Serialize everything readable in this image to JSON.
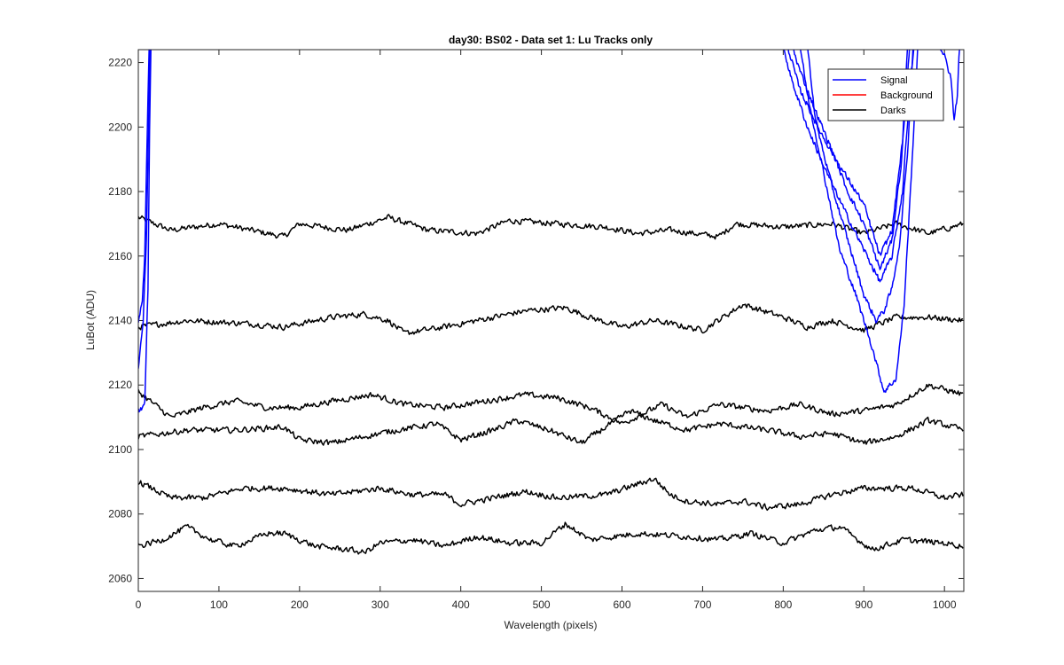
{
  "chart_data": {
    "type": "line",
    "title": "day30: BS02 - Data set 1: Lu Tracks only",
    "xlabel": "Wavelength (pixels)",
    "ylabel": "LuBot (ADU)",
    "xlim": [
      0,
      1024
    ],
    "ylim": [
      2056,
      2224
    ],
    "xticks": [
      0,
      100,
      200,
      300,
      400,
      500,
      600,
      700,
      800,
      900,
      1000
    ],
    "yticks": [
      2060,
      2080,
      2100,
      2120,
      2140,
      2160,
      2180,
      2200,
      2220
    ],
    "legend": {
      "placement": "top-right",
      "entries": [
        {
          "label": "Signal",
          "color": "#0000ff"
        },
        {
          "label": "Background",
          "color": "#ff0000"
        },
        {
          "label": "Darks",
          "color": "#000000"
        }
      ]
    },
    "noise_amplitude": 1.2,
    "dark_series": [
      {
        "name": "Darks 1",
        "color": "#000000",
        "points": [
          [
            0,
            2172
          ],
          [
            40,
            2168
          ],
          [
            100,
            2170
          ],
          [
            180,
            2166
          ],
          [
            200,
            2170
          ],
          [
            260,
            2168
          ],
          [
            310,
            2172
          ],
          [
            360,
            2168
          ],
          [
            420,
            2167
          ],
          [
            460,
            2171
          ],
          [
            520,
            2170
          ],
          [
            580,
            2169
          ],
          [
            620,
            2167
          ],
          [
            660,
            2168
          ],
          [
            720,
            2166
          ],
          [
            740,
            2170
          ],
          [
            800,
            2169
          ],
          [
            860,
            2170
          ],
          [
            900,
            2167
          ],
          [
            940,
            2170
          ],
          [
            980,
            2167
          ],
          [
            1024,
            2170
          ]
        ]
      },
      {
        "name": "Darks 2",
        "color": "#000000",
        "points": [
          [
            0,
            2138
          ],
          [
            60,
            2140
          ],
          [
            140,
            2139
          ],
          [
            180,
            2138
          ],
          [
            240,
            2141
          ],
          [
            280,
            2142
          ],
          [
            310,
            2140
          ],
          [
            330,
            2136
          ],
          [
            380,
            2138
          ],
          [
            420,
            2140
          ],
          [
            480,
            2143
          ],
          [
            530,
            2144
          ],
          [
            560,
            2141
          ],
          [
            600,
            2138
          ],
          [
            640,
            2140
          ],
          [
            700,
            2137
          ],
          [
            750,
            2145
          ],
          [
            800,
            2141
          ],
          [
            830,
            2138
          ],
          [
            860,
            2140
          ],
          [
            900,
            2137
          ],
          [
            940,
            2141
          ],
          [
            980,
            2141
          ],
          [
            1024,
            2140
          ]
        ]
      },
      {
        "name": "Darks 3",
        "color": "#000000",
        "points": [
          [
            0,
            2118
          ],
          [
            20,
            2114
          ],
          [
            40,
            2110
          ],
          [
            80,
            2113
          ],
          [
            120,
            2115
          ],
          [
            160,
            2113
          ],
          [
            200,
            2113
          ],
          [
            240,
            2115
          ],
          [
            290,
            2117
          ],
          [
            330,
            2114
          ],
          [
            380,
            2113
          ],
          [
            430,
            2115
          ],
          [
            480,
            2117
          ],
          [
            520,
            2116
          ],
          [
            560,
            2113
          ],
          [
            600,
            2108
          ],
          [
            650,
            2114
          ],
          [
            680,
            2110
          ],
          [
            720,
            2114
          ],
          [
            780,
            2112
          ],
          [
            820,
            2114
          ],
          [
            860,
            2111
          ],
          [
            900,
            2112
          ],
          [
            940,
            2114
          ],
          [
            980,
            2120
          ],
          [
            1024,
            2117
          ]
        ]
      },
      {
        "name": "Darks 4",
        "color": "#000000",
        "points": [
          [
            0,
            2104
          ],
          [
            60,
            2106
          ],
          [
            120,
            2106
          ],
          [
            180,
            2107
          ],
          [
            200,
            2103
          ],
          [
            240,
            2102
          ],
          [
            280,
            2104
          ],
          [
            320,
            2106
          ],
          [
            370,
            2108
          ],
          [
            400,
            2103
          ],
          [
            440,
            2106
          ],
          [
            470,
            2109
          ],
          [
            510,
            2106
          ],
          [
            550,
            2102
          ],
          [
            610,
            2112
          ],
          [
            640,
            2109
          ],
          [
            680,
            2106
          ],
          [
            720,
            2108
          ],
          [
            780,
            2106
          ],
          [
            820,
            2104
          ],
          [
            860,
            2105
          ],
          [
            900,
            2102
          ],
          [
            940,
            2104
          ],
          [
            980,
            2109
          ],
          [
            1024,
            2106
          ]
        ]
      },
      {
        "name": "Darks 5",
        "color": "#000000",
        "points": [
          [
            0,
            2090
          ],
          [
            40,
            2085
          ],
          [
            80,
            2085
          ],
          [
            130,
            2088
          ],
          [
            180,
            2088
          ],
          [
            240,
            2086
          ],
          [
            300,
            2088
          ],
          [
            340,
            2086
          ],
          [
            380,
            2086
          ],
          [
            400,
            2083
          ],
          [
            440,
            2085
          ],
          [
            480,
            2087
          ],
          [
            520,
            2085
          ],
          [
            580,
            2086
          ],
          [
            640,
            2091
          ],
          [
            660,
            2086
          ],
          [
            680,
            2084
          ],
          [
            720,
            2083
          ],
          [
            750,
            2084
          ],
          [
            780,
            2082
          ],
          [
            820,
            2083
          ],
          [
            860,
            2086
          ],
          [
            900,
            2088
          ],
          [
            960,
            2088
          ],
          [
            1000,
            2085
          ],
          [
            1024,
            2086
          ]
        ]
      },
      {
        "name": "Darks 6",
        "color": "#000000",
        "points": [
          [
            0,
            2070
          ],
          [
            30,
            2072
          ],
          [
            60,
            2076
          ],
          [
            90,
            2072
          ],
          [
            120,
            2070
          ],
          [
            160,
            2074
          ],
          [
            180,
            2074
          ],
          [
            220,
            2070
          ],
          [
            260,
            2069
          ],
          [
            280,
            2068
          ],
          [
            300,
            2071
          ],
          [
            340,
            2072
          ],
          [
            380,
            2070
          ],
          [
            420,
            2073
          ],
          [
            460,
            2071
          ],
          [
            500,
            2071
          ],
          [
            530,
            2077
          ],
          [
            560,
            2072
          ],
          [
            620,
            2074
          ],
          [
            680,
            2073
          ],
          [
            720,
            2072
          ],
          [
            760,
            2074
          ],
          [
            800,
            2071
          ],
          [
            840,
            2075
          ],
          [
            870,
            2076
          ],
          [
            910,
            2069
          ],
          [
            950,
            2072
          ],
          [
            1000,
            2071
          ],
          [
            1024,
            2070
          ]
        ]
      }
    ],
    "signal_series": [
      {
        "name": "Signal 1",
        "color": "#0000ff",
        "points": [
          [
            0,
            2112
          ],
          [
            8,
            2114
          ],
          [
            12,
            2150
          ],
          [
            14,
            2200
          ],
          [
            16,
            2230
          ]
        ]
      },
      {
        "name": "Signal 2",
        "color": "#0000ff",
        "points": [
          [
            0,
            2125
          ],
          [
            6,
            2140
          ],
          [
            10,
            2165
          ],
          [
            13,
            2205
          ],
          [
            15,
            2230
          ]
        ]
      },
      {
        "name": "Signal 3",
        "color": "#0000ff",
        "points": [
          [
            0,
            2140
          ],
          [
            5,
            2146
          ],
          [
            8,
            2160
          ],
          [
            12,
            2210
          ],
          [
            14,
            2230
          ]
        ]
      },
      {
        "name": "Signal 4",
        "color": "#0000ff",
        "points": [
          [
            828,
            2230
          ],
          [
            840,
            2202
          ],
          [
            860,
            2182
          ],
          [
            880,
            2165
          ],
          [
            900,
            2148
          ],
          [
            915,
            2140
          ],
          [
            925,
            2143
          ],
          [
            935,
            2150
          ],
          [
            945,
            2165
          ],
          [
            955,
            2195
          ],
          [
            962,
            2230
          ]
        ]
      },
      {
        "name": "Signal 5",
        "color": "#0000ff",
        "points": [
          [
            818,
            2230
          ],
          [
            830,
            2210
          ],
          [
            850,
            2186
          ],
          [
            870,
            2162
          ],
          [
            890,
            2148
          ],
          [
            910,
            2132
          ],
          [
            925,
            2118
          ],
          [
            940,
            2122
          ],
          [
            950,
            2145
          ],
          [
            960,
            2190
          ],
          [
            968,
            2230
          ]
        ]
      },
      {
        "name": "Signal 6",
        "color": "#0000ff",
        "points": [
          [
            795,
            2230
          ],
          [
            810,
            2215
          ],
          [
            830,
            2200
          ],
          [
            850,
            2188
          ],
          [
            880,
            2172
          ],
          [
            900,
            2162
          ],
          [
            920,
            2152
          ],
          [
            935,
            2160
          ],
          [
            948,
            2180
          ],
          [
            958,
            2215
          ],
          [
            965,
            2230
          ]
        ]
      },
      {
        "name": "Signal 7",
        "color": "#0000ff",
        "points": [
          [
            805,
            2230
          ],
          [
            820,
            2218
          ],
          [
            840,
            2205
          ],
          [
            860,
            2193
          ],
          [
            880,
            2180
          ],
          [
            900,
            2170
          ],
          [
            920,
            2156
          ],
          [
            935,
            2165
          ],
          [
            947,
            2190
          ],
          [
            955,
            2230
          ]
        ]
      },
      {
        "name": "Signal 8",
        "color": "#0000ff",
        "points": [
          [
            800,
            2230
          ],
          [
            820,
            2212
          ],
          [
            845,
            2199
          ],
          [
            870,
            2188
          ],
          [
            900,
            2176
          ],
          [
            920,
            2160
          ],
          [
            935,
            2168
          ],
          [
            950,
            2200
          ],
          [
            958,
            2230
          ]
        ]
      },
      {
        "name": "Signal 9",
        "color": "#0000ff",
        "points": [
          [
            985,
            2230
          ],
          [
            1000,
            2222
          ],
          [
            1008,
            2215
          ],
          [
            1012,
            2202
          ],
          [
            1016,
            2210
          ],
          [
            1018,
            2222
          ],
          [
            1020,
            2230
          ]
        ]
      }
    ]
  }
}
